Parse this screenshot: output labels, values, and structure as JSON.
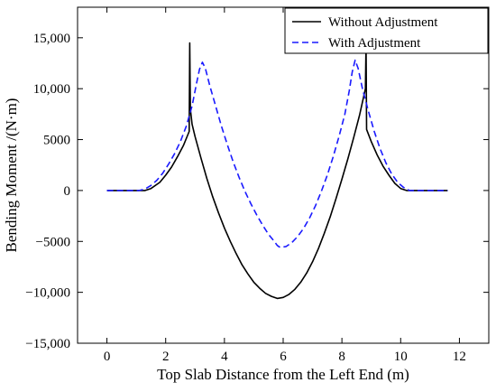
{
  "chart_data": {
    "type": "line",
    "title": "",
    "xlabel": "Top Slab Distance from the Left End (m)",
    "ylabel": "Bending Moment /(N·m)",
    "xlim": [
      -1,
      13
    ],
    "ylim": [
      -15000,
      18000
    ],
    "x_ticks": [
      0,
      2,
      4,
      6,
      8,
      10,
      12
    ],
    "x_tick_labels": [
      "0",
      "2",
      "4",
      "6",
      "8",
      "10",
      "12"
    ],
    "y_ticks": [
      -15000,
      -10000,
      -5000,
      0,
      5000,
      10000,
      15000
    ],
    "y_tick_labels": [
      "−15,000",
      "−10,000",
      "−5000",
      "0",
      "5000",
      "10,000",
      "15,000"
    ],
    "grid": false,
    "legend_position": "top-right",
    "series": [
      {
        "name": "Without Adjustment",
        "color": "#000000",
        "dash": "solid",
        "x": [
          0,
          1.3,
          1.5,
          1.8,
          2.0,
          2.2,
          2.4,
          2.6,
          2.8,
          2.82,
          2.84,
          2.9,
          3.0,
          3.2,
          3.4,
          3.6,
          3.8,
          4.0,
          4.2,
          4.4,
          4.6,
          4.8,
          5.0,
          5.2,
          5.4,
          5.6,
          5.8,
          6.0,
          6.2,
          6.4,
          6.6,
          6.8,
          7.0,
          7.2,
          7.4,
          7.6,
          7.8,
          8.0,
          8.2,
          8.4,
          8.6,
          8.8,
          8.82,
          8.84,
          9.0,
          9.2,
          9.4,
          9.6,
          9.8,
          10.0,
          10.2,
          10.4,
          11.6
        ],
        "y": [
          0,
          0,
          200,
          800,
          1500,
          2300,
          3300,
          4400,
          5800,
          14500,
          8000,
          6500,
          5300,
          3200,
          1200,
          -600,
          -2200,
          -3700,
          -5000,
          -6200,
          -7300,
          -8200,
          -9000,
          -9600,
          -10100,
          -10400,
          -10600,
          -10500,
          -10200,
          -9700,
          -9000,
          -8100,
          -7000,
          -5700,
          -4200,
          -2600,
          -800,
          1100,
          3100,
          5200,
          7400,
          10000,
          14500,
          6000,
          4800,
          3500,
          2400,
          1500,
          700,
          200,
          0,
          0,
          0
        ]
      },
      {
        "name": "With Adjustment",
        "color": "#1a1aff",
        "dash": "dashed",
        "x": [
          0,
          1.1,
          1.3,
          1.5,
          1.7,
          1.9,
          2.1,
          2.3,
          2.5,
          2.7,
          2.9,
          3.05,
          3.15,
          3.25,
          3.35,
          3.5,
          3.7,
          3.9,
          4.1,
          4.3,
          4.5,
          4.7,
          4.9,
          5.1,
          5.3,
          5.5,
          5.7,
          5.8,
          5.9,
          6.1,
          6.3,
          6.5,
          6.7,
          6.9,
          7.1,
          7.3,
          7.5,
          7.7,
          7.9,
          8.1,
          8.25,
          8.35,
          8.45,
          8.55,
          8.7,
          8.9,
          9.1,
          9.3,
          9.5,
          9.7,
          9.9,
          10.1,
          10.3,
          10.5,
          11.6
        ],
        "y": [
          0,
          0,
          150,
          500,
          1000,
          1700,
          2600,
          3600,
          4800,
          6300,
          8300,
          10500,
          11900,
          12600,
          12000,
          10300,
          8300,
          6300,
          4500,
          2800,
          1300,
          -100,
          -1300,
          -2400,
          -3400,
          -4300,
          -5000,
          -5400,
          -5600,
          -5500,
          -5100,
          -4500,
          -3700,
          -2700,
          -1500,
          -100,
          1500,
          3300,
          5300,
          7500,
          9800,
          11600,
          12800,
          12000,
          10000,
          7800,
          5800,
          4100,
          2700,
          1600,
          800,
          300,
          0,
          0,
          0
        ]
      }
    ]
  }
}
